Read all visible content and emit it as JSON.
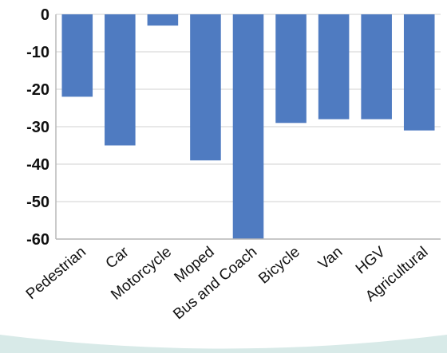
{
  "chart_data": {
    "type": "bar",
    "title": "",
    "xlabel": "",
    "ylabel": "",
    "ylim": [
      -60,
      0
    ],
    "yticks": [
      0,
      -10,
      -20,
      -30,
      -40,
      -50,
      -60
    ],
    "grid": true,
    "legend": "none",
    "categories": [
      "Pedestrian",
      "Car",
      "Motorcycle",
      "Moped",
      "Bus and Coach",
      "Bicycle",
      "Van",
      "HGV",
      "Agricultural"
    ],
    "series": [
      {
        "values": [
          -22,
          -35,
          -3,
          -39,
          -60,
          -29,
          -28,
          -28,
          -31
        ]
      }
    ],
    "colors": {
      "bar": "#4F7BC1",
      "grid": "#D9D9D9",
      "axis": "#B8B8B8",
      "bottom_accent": "#D8EAE8"
    }
  }
}
